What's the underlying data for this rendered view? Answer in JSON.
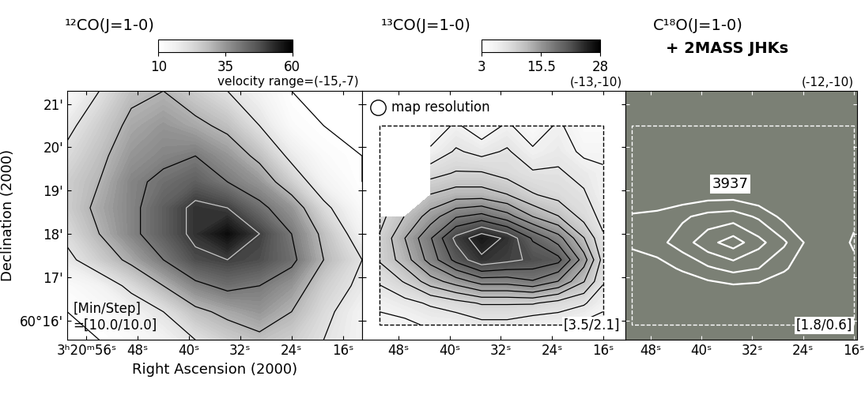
{
  "chart_data": [
    {
      "type": "contour_map",
      "title": "¹²CO(J=1-0)",
      "velocity_label": "velocity range=(-15,-7)",
      "xlabel": "Right Ascension (2000)",
      "ylabel": "Declination (2000)",
      "xlim": [
        59,
        13
      ],
      "ylim": [
        15.55,
        21.3
      ],
      "xticks": [
        {
          "value": 56,
          "label": "3ʰ20ᵐ56ˢ"
        },
        {
          "value": 48,
          "label": "48ˢ"
        },
        {
          "value": 40,
          "label": "40ˢ"
        },
        {
          "value": 32,
          "label": "32ˢ"
        },
        {
          "value": 24,
          "label": "24ˢ"
        },
        {
          "value": 16,
          "label": "16ˢ"
        }
      ],
      "yticks": [
        {
          "value": 16,
          "label": "60°16'"
        },
        {
          "value": 17,
          "label": "17'"
        },
        {
          "value": 18,
          "label": "18'"
        },
        {
          "value": 19,
          "label": "19'"
        },
        {
          "value": 20,
          "label": "20'"
        },
        {
          "value": 21,
          "label": "21'"
        }
      ],
      "colorbar": {
        "range": [
          10,
          60
        ],
        "ticks": [
          10,
          35,
          60
        ]
      },
      "grid_x": [
        59,
        54,
        49,
        44,
        39,
        34,
        29,
        24,
        19,
        13
      ],
      "grid_y": [
        15.55,
        16.2,
        16.8,
        17.4,
        18.0,
        18.6,
        19.2,
        19.8,
        20.5,
        21.3
      ],
      "cells": [
        [
          10,
          10,
          12,
          15,
          20,
          25,
          28,
          25,
          20,
          15
        ],
        [
          10,
          12,
          15,
          20,
          28,
          32,
          35,
          30,
          22,
          15
        ],
        [
          12,
          15,
          22,
          30,
          38,
          42,
          40,
          35,
          25,
          18
        ],
        [
          18,
          25,
          32,
          40,
          48,
          50,
          48,
          42,
          30,
          20
        ],
        [
          22,
          30,
          38,
          45,
          52,
          58,
          50,
          40,
          28,
          15
        ],
        [
          25,
          32,
          38,
          45,
          52,
          50,
          42,
          35,
          22,
          12
        ],
        [
          25,
          30,
          38,
          42,
          45,
          40,
          35,
          25,
          15,
          10
        ],
        [
          22,
          28,
          35,
          38,
          40,
          35,
          28,
          18,
          12,
          10
        ],
        [
          18,
          25,
          32,
          35,
          32,
          28,
          20,
          12,
          10,
          10
        ],
        [
          12,
          20,
          28,
          30,
          25,
          20,
          15,
          10,
          10,
          10
        ]
      ],
      "contour_min": 10.0,
      "contour_step": 10.0,
      "annotations": [
        "[Min/Step]\n=[10.0/10.0]"
      ]
    },
    {
      "type": "contour_map",
      "title": "¹³CO(J=1-0)",
      "velocity_label": "(-13,-10)",
      "xlim": [
        53.7,
        12.5
      ],
      "ylim": [
        15.55,
        21.3
      ],
      "tick_labels": "x",
      "xticks": [
        {
          "value": 48,
          "label": "48ˢ"
        },
        {
          "value": 40,
          "label": "40ˢ"
        },
        {
          "value": 32,
          "label": "32ˢ"
        },
        {
          "value": 24,
          "label": "24ˢ"
        },
        {
          "value": 16,
          "label": "16ˢ"
        }
      ],
      "yticks": [
        16,
        17,
        18,
        19,
        20,
        21
      ],
      "colorbar": {
        "range": [
          3,
          28
        ],
        "ticks": [
          3,
          15.5,
          28
        ]
      },
      "grid_x": [
        51,
        47,
        43,
        39,
        35,
        31,
        27,
        23,
        19,
        16
      ],
      "grid_y": [
        15.9,
        16.4,
        16.9,
        17.4,
        17.9,
        18.4,
        18.9,
        19.4,
        19.9,
        20.5
      ],
      "cells": [
        [
          5,
          5,
          6,
          6,
          7,
          7,
          6,
          6,
          5,
          5
        ],
        [
          6,
          7,
          8,
          9,
          10,
          10,
          10,
          9,
          8,
          6
        ],
        [
          8,
          10,
          13,
          15,
          17,
          17,
          18,
          16,
          12,
          8
        ],
        [
          10,
          13,
          17,
          21,
          24,
          23,
          22,
          21,
          15,
          9
        ],
        [
          10,
          14,
          18,
          23,
          26,
          24,
          20,
          17,
          12,
          8
        ],
        [
          9,
          12,
          15,
          18,
          19,
          17,
          14,
          12,
          9,
          7
        ],
        [
          null,
          null,
          12,
          13,
          13,
          12,
          10,
          9,
          8,
          6
        ],
        [
          null,
          null,
          9,
          10,
          10,
          9,
          8,
          8,
          7,
          6
        ],
        [
          null,
          null,
          6,
          8,
          7,
          8,
          6,
          7,
          5,
          5
        ],
        [
          null,
          null,
          4,
          6,
          4,
          6,
          4,
          6,
          4,
          4
        ]
      ],
      "contour_min": 3.5,
      "contour_step": 2.1,
      "annotations": [
        "map resolution",
        "[3.5/2.1]"
      ]
    },
    {
      "type": "contour_map",
      "title": "C¹⁸O(J=1-0)",
      "subtitle": "+ 2MASS JHKs",
      "velocity_label": "(-12,-10)",
      "xlim": [
        52,
        15.5
      ],
      "ylim": [
        15.55,
        21.3
      ],
      "tick_labels": "x",
      "color": "#7b8075",
      "xticks": [
        {
          "value": 48,
          "label": "48ˢ"
        },
        {
          "value": 40,
          "label": "40ˢ"
        },
        {
          "value": 32,
          "label": "32ˢ"
        },
        {
          "value": 24,
          "label": "24ˢ"
        },
        {
          "value": 16,
          "label": "16ˢ"
        }
      ],
      "yticks": [
        16,
        17,
        18,
        19,
        20,
        21
      ],
      "grid_x": [
        51,
        47,
        43,
        39,
        35,
        31,
        27,
        23,
        19,
        16
      ],
      "grid_y": [
        15.9,
        16.6,
        17.2,
        17.8,
        18.4,
        19.0,
        19.6,
        20.5
      ],
      "cells": [
        [
          0.5,
          0.6,
          0.7,
          0.8,
          0.8,
          0.8,
          0.7,
          0.6,
          0.6,
          0.8
        ],
        [
          0.8,
          0.9,
          1.0,
          1.2,
          1.3,
          1.3,
          1.1,
          0.9,
          0.8,
          1.0
        ],
        [
          1.2,
          1.5,
          1.9,
          2.3,
          2.6,
          2.4,
          1.9,
          1.3,
          1.0,
          1.4
        ],
        [
          2.0,
          2.2,
          2.7,
          3.4,
          3.9,
          3.2,
          2.5,
          1.6,
          1.1,
          2.0
        ],
        [
          1.9,
          2.0,
          2.3,
          2.6,
          2.7,
          2.3,
          1.6,
          1.0,
          0.9,
          1.5
        ],
        [
          1.0,
          1.1,
          1.2,
          1.3,
          1.3,
          1.1,
          0.9,
          0.8,
          0.8,
          1.0
        ],
        [
          0.6,
          0.6,
          0.7,
          0.7,
          0.7,
          0.7,
          0.6,
          0.6,
          0.6,
          0.6
        ],
        [
          0.5,
          0.5,
          0.5,
          0.5,
          0.5,
          0.5,
          0.5,
          0.5,
          0.5,
          0.5
        ]
      ],
      "contour_min": 1.8,
      "contour_step": 0.6,
      "annotations": [
        "3937",
        "[1.8/0.6]"
      ]
    }
  ]
}
